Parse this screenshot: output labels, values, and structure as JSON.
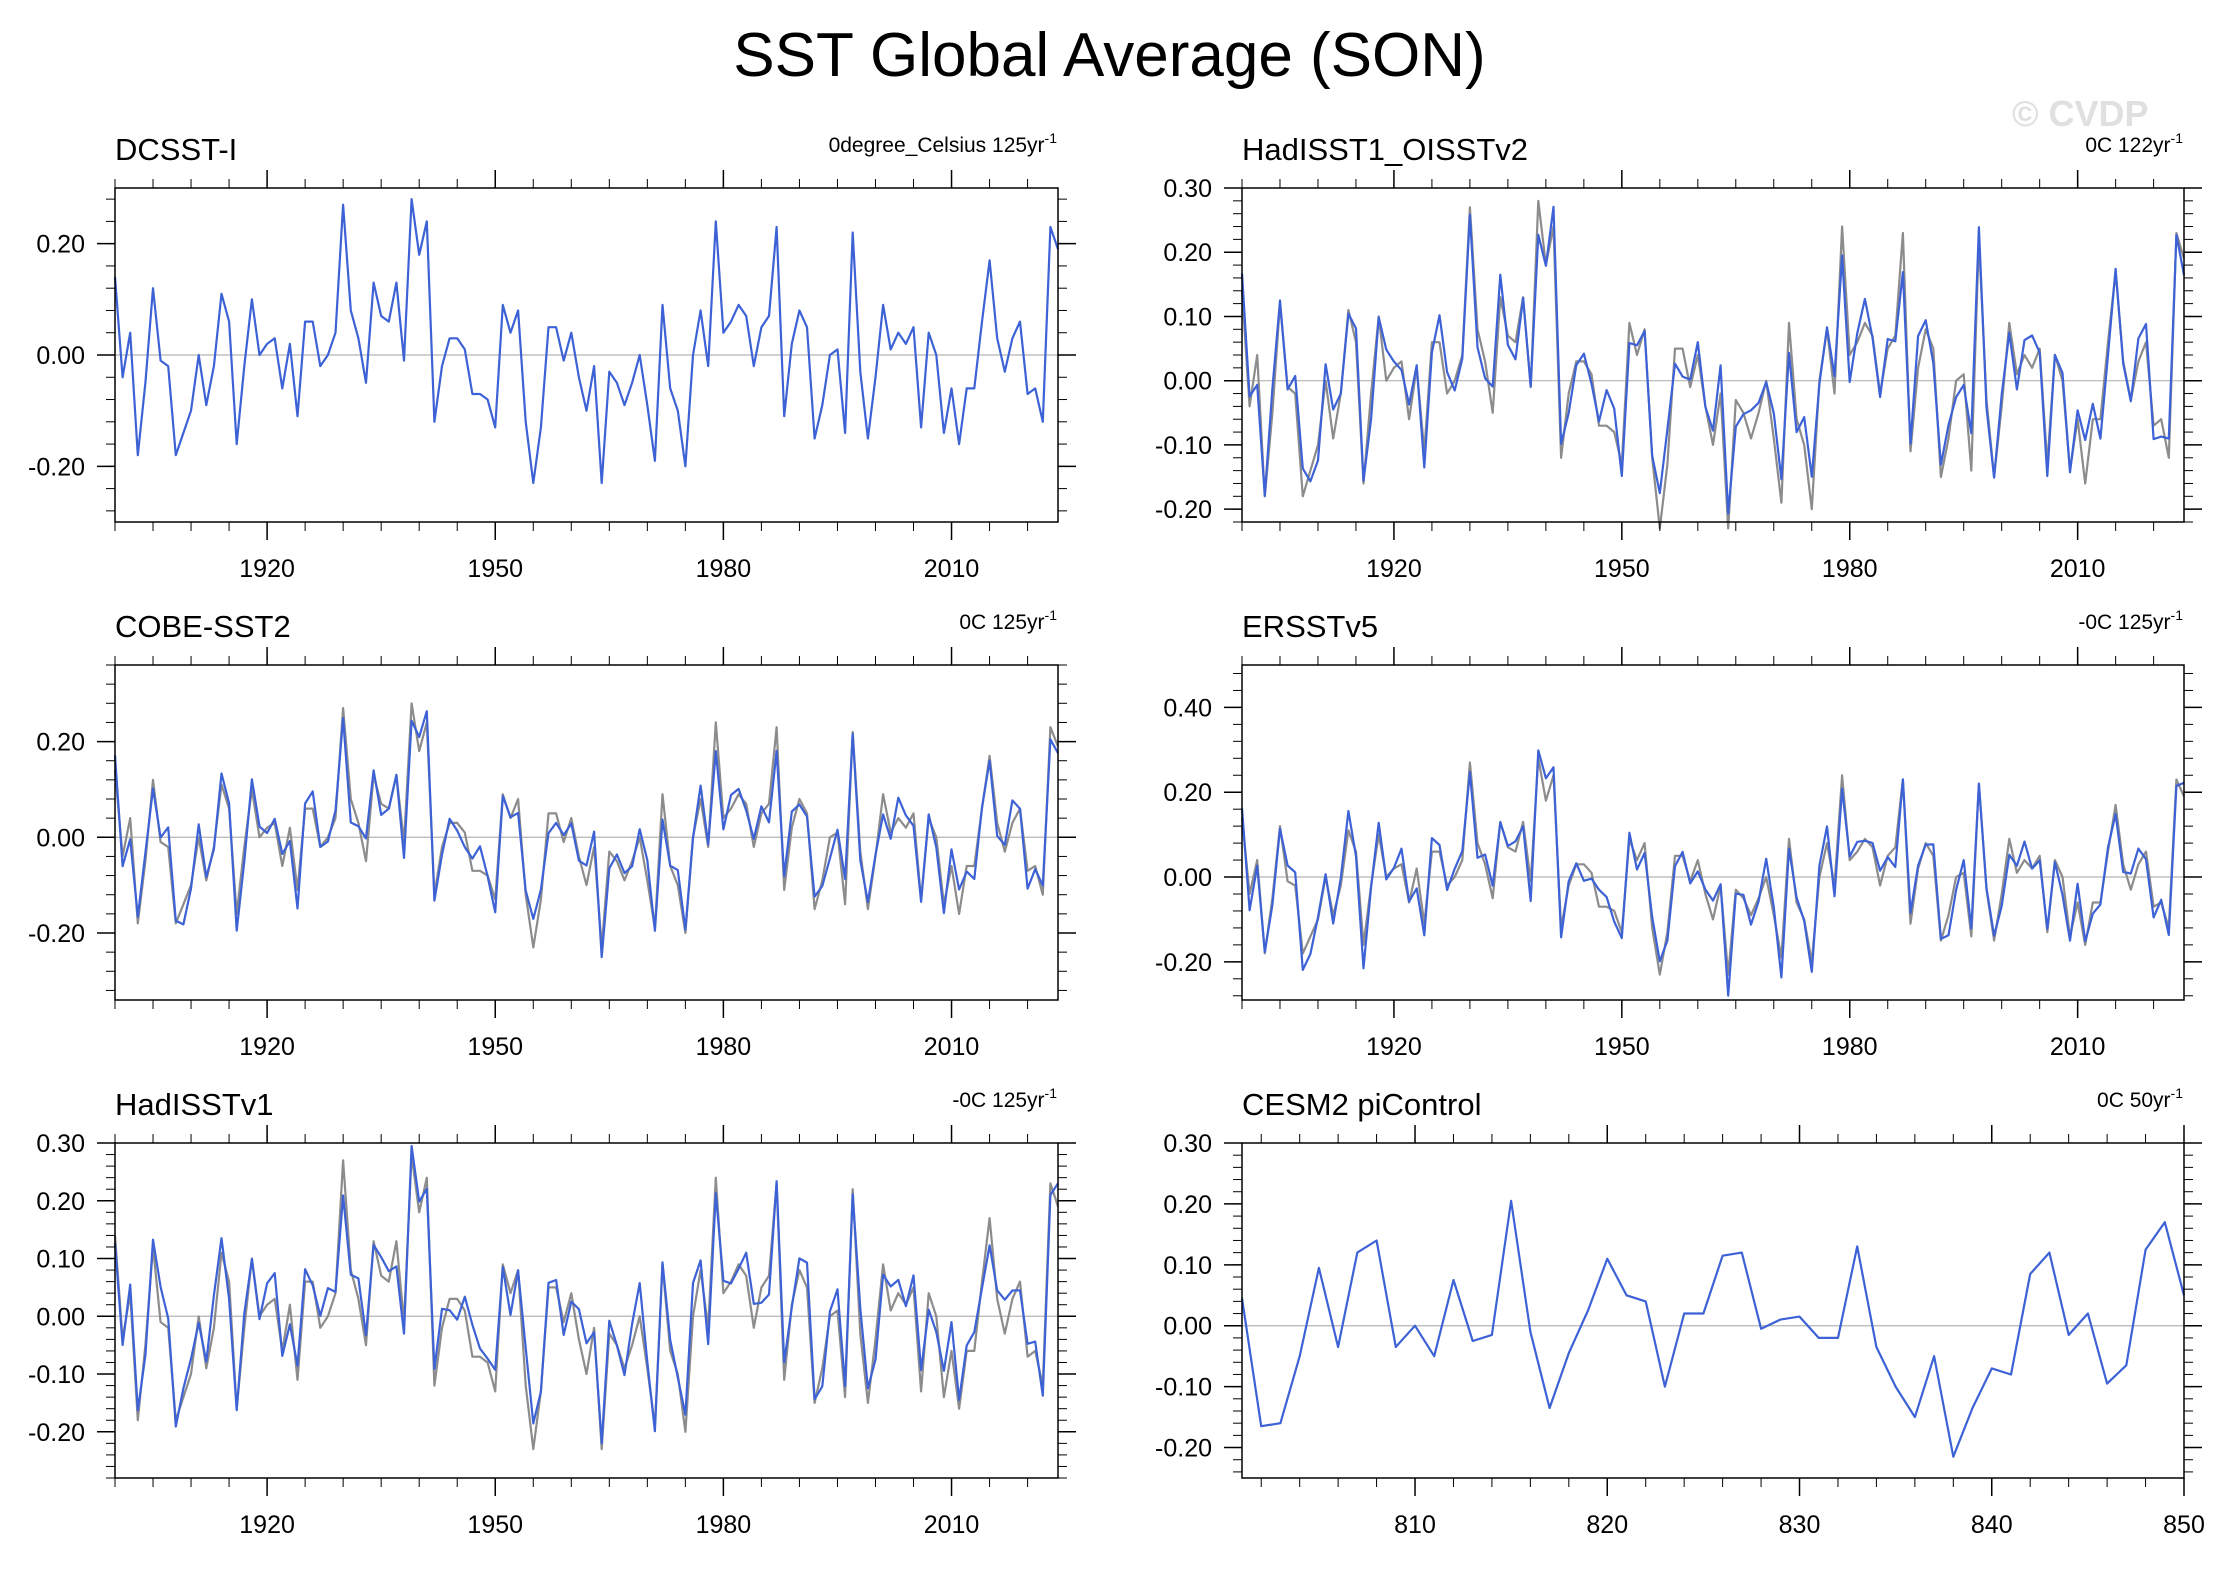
{
  "title": "SST Global Average (SON)",
  "watermark": "© CVDP",
  "colors": {
    "series": "#3d62d6",
    "reference": "#8c8c8c",
    "zero_line": "#b4b4b4"
  },
  "chart_data": [
    {
      "id": "dcsst",
      "type": "line",
      "title": "DCSST-I",
      "trend": {
        "prefix": "0degree_Celsius 125yr",
        "sup": "-1"
      },
      "xlim": [
        1900,
        2024
      ],
      "x_ticks": [
        1920,
        1950,
        1980,
        2010
      ],
      "ylim": [
        -0.3,
        0.3
      ],
      "y_ticks": [
        -0.2,
        0.0,
        0.2
      ],
      "series": [
        {
          "name": "DCSST-I",
          "color": "#3d62d6",
          "ref": "base"
        }
      ]
    },
    {
      "id": "hadoi",
      "type": "line",
      "title": "HadISST1_OISSTv2",
      "trend": {
        "prefix": "0C 122yr",
        "sup": "-1"
      },
      "xlim": [
        1900,
        2024
      ],
      "x_ticks": [
        1920,
        1950,
        1980,
        2010
      ],
      "ylim": [
        -0.22,
        0.3
      ],
      "y_ticks": [
        -0.2,
        -0.1,
        0.0,
        0.1,
        0.2,
        0.3
      ],
      "series": [
        {
          "name": "DCSST-I",
          "color": "#8c8c8c",
          "ref": "base"
        },
        {
          "name": "HadISST1_OISSTv2",
          "color": "#3d62d6",
          "ref": "base",
          "scale": 0.9,
          "bias": 0.005
        }
      ]
    },
    {
      "id": "cobe",
      "type": "line",
      "title": "COBE-SST2",
      "trend": {
        "prefix": "0C 125yr",
        "sup": "-1"
      },
      "xlim": [
        1900,
        2024
      ],
      "x_ticks": [
        1920,
        1950,
        1980,
        2010
      ],
      "ylim": [
        -0.34,
        0.36
      ],
      "y_ticks": [
        -0.2,
        0.0,
        0.2
      ],
      "series": [
        {
          "name": "DCSST-I",
          "color": "#8c8c8c",
          "ref": "base"
        },
        {
          "name": "COBE-SST2",
          "color": "#3d62d6",
          "ref": "base",
          "scale": 0.95,
          "bias": 0.0
        }
      ]
    },
    {
      "id": "ersst",
      "type": "line",
      "title": "ERSSTv5",
      "trend": {
        "prefix": "-0C 125yr",
        "sup": "-1"
      },
      "xlim": [
        1900,
        2024
      ],
      "x_ticks": [
        1920,
        1950,
        1980,
        2010
      ],
      "ylim": [
        -0.29,
        0.5
      ],
      "y_ticks": [
        -0.2,
        0.0,
        0.2,
        0.4
      ],
      "series": [
        {
          "name": "DCSST-I",
          "color": "#8c8c8c",
          "ref": "base"
        },
        {
          "name": "ERSSTv5",
          "color": "#3d62d6",
          "ref": "base",
          "scale": 1.05,
          "bias": 0.0
        }
      ]
    },
    {
      "id": "hadisst",
      "type": "line",
      "title": "HadISSTv1",
      "trend": {
        "prefix": "-0C 125yr",
        "sup": "-1"
      },
      "xlim": [
        1900,
        2024
      ],
      "x_ticks": [
        1920,
        1950,
        1980,
        2010
      ],
      "ylim": [
        -0.28,
        0.3
      ],
      "y_ticks": [
        -0.2,
        -0.1,
        0.0,
        0.1,
        0.2,
        0.3
      ],
      "series": [
        {
          "name": "DCSST-I",
          "color": "#8c8c8c",
          "ref": "base"
        },
        {
          "name": "HadISSTv1",
          "color": "#3d62d6",
          "ref": "base",
          "scale": 0.92,
          "bias": 0.01
        }
      ]
    },
    {
      "id": "cesm",
      "type": "line",
      "title": "CESM2 piControl",
      "trend": {
        "prefix": "0C 50yr",
        "sup": "-1"
      },
      "xlim": [
        801,
        850
      ],
      "x_ticks": [
        810,
        820,
        830,
        840,
        850
      ],
      "ylim": [
        -0.25,
        0.3
      ],
      "y_ticks": [
        -0.2,
        -0.1,
        0.0,
        0.1,
        0.2,
        0.3
      ],
      "series": [
        {
          "name": "CESM2 piControl",
          "color": "#3d62d6",
          "x": [
            801,
            802,
            803,
            804,
            805,
            806,
            807,
            808,
            809,
            810,
            811,
            812,
            813,
            814,
            815,
            816,
            817,
            818,
            819,
            820,
            821,
            822,
            823,
            824,
            825,
            826,
            827,
            828,
            829,
            830,
            831,
            832,
            833,
            834,
            835,
            836,
            837,
            838,
            839,
            840,
            841,
            842,
            843,
            844,
            845,
            846,
            847,
            848,
            849,
            850
          ],
          "values": [
            0.045,
            -0.165,
            -0.16,
            -0.05,
            0.095,
            -0.035,
            0.12,
            0.14,
            -0.035,
            0.0,
            -0.05,
            0.075,
            -0.025,
            -0.015,
            0.205,
            -0.01,
            -0.135,
            -0.045,
            0.025,
            0.11,
            0.05,
            0.04,
            -0.1,
            0.02,
            0.02,
            0.115,
            0.12,
            -0.005,
            0.01,
            0.015,
            -0.02,
            -0.02,
            0.13,
            -0.035,
            -0.1,
            -0.15,
            -0.05,
            -0.215,
            -0.135,
            -0.07,
            -0.08,
            0.085,
            0.12,
            -0.015,
            0.02,
            -0.095,
            -0.065,
            0.125,
            0.17,
            0.05
          ]
        }
      ]
    }
  ],
  "base_series": {
    "x_start": 1900,
    "values": [
      0.14,
      -0.04,
      0.04,
      -0.18,
      -0.05,
      0.12,
      -0.01,
      -0.02,
      -0.18,
      -0.14,
      -0.1,
      0.0,
      -0.09,
      -0.02,
      0.11,
      0.06,
      -0.16,
      -0.02,
      0.1,
      0.0,
      0.02,
      0.03,
      -0.06,
      0.02,
      -0.11,
      0.06,
      0.06,
      -0.02,
      0.0,
      0.04,
      0.27,
      0.08,
      0.03,
      -0.05,
      0.13,
      0.07,
      0.06,
      0.13,
      -0.01,
      0.28,
      0.18,
      0.24,
      -0.12,
      -0.02,
      0.03,
      0.03,
      0.01,
      -0.07,
      -0.07,
      -0.08,
      -0.13,
      0.09,
      0.04,
      0.08,
      -0.12,
      -0.23,
      -0.13,
      0.05,
      0.05,
      -0.01,
      0.04,
      -0.04,
      -0.1,
      -0.02,
      -0.23,
      -0.03,
      -0.05,
      -0.09,
      -0.05,
      0.0,
      -0.09,
      -0.19,
      0.09,
      -0.06,
      -0.1,
      -0.2,
      0.0,
      0.08,
      -0.02,
      0.24,
      0.04,
      0.06,
      0.09,
      0.07,
      -0.02,
      0.05,
      0.07,
      0.23,
      -0.11,
      0.02,
      0.08,
      0.05,
      -0.15,
      -0.09,
      0.0,
      0.01,
      -0.14,
      0.22,
      -0.03,
      -0.15,
      -0.04,
      0.09,
      0.01,
      0.04,
      0.02,
      0.05,
      -0.13,
      0.04,
      0.0,
      -0.14,
      -0.06,
      -0.16,
      -0.06,
      -0.06,
      0.06,
      0.17,
      0.03,
      -0.03,
      0.03,
      0.06,
      -0.07,
      -0.06,
      -0.12,
      0.23,
      0.19
    ]
  }
}
